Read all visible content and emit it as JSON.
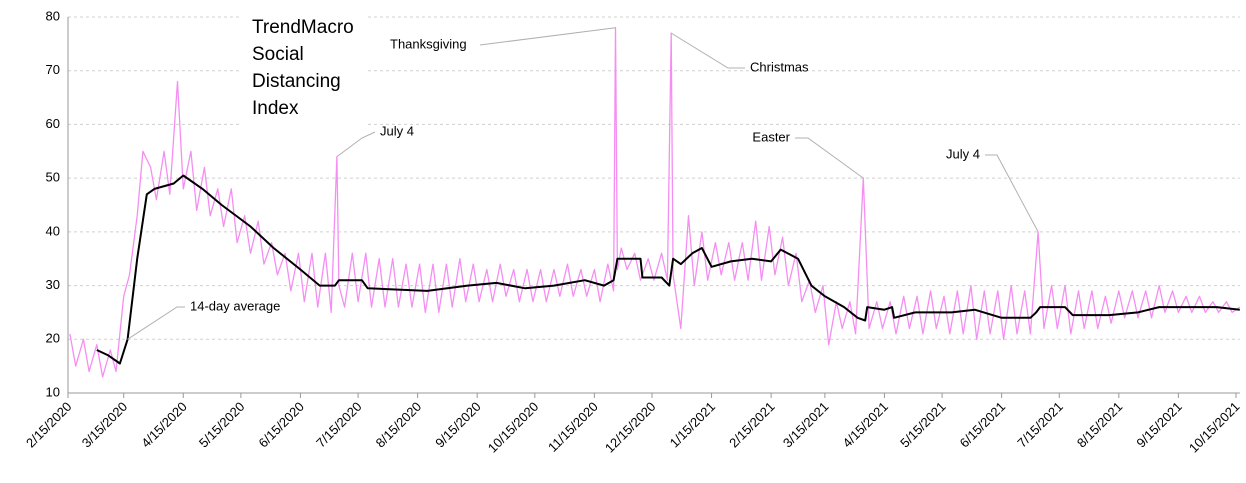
{
  "chart_data": {
    "type": "line",
    "title": [
      "TrendMacro",
      "Social",
      "Distancing",
      "Index"
    ],
    "xlim": [
      "2/15/2020",
      "10/17/2021"
    ],
    "xticks": [
      "2/15/2020",
      "3/15/2020",
      "4/15/2020",
      "5/15/2020",
      "6/15/2020",
      "7/15/2020",
      "8/15/2020",
      "9/15/2020",
      "10/15/2020",
      "11/15/2020",
      "12/15/2020",
      "1/15/2021",
      "2/15/2021",
      "3/15/2021",
      "4/15/2021",
      "5/15/2021",
      "6/15/2021",
      "7/15/2021",
      "8/15/2021",
      "9/15/2021",
      "10/15/2021"
    ],
    "ylim": [
      10,
      80
    ],
    "yticks": [
      10,
      20,
      30,
      40,
      50,
      60,
      70,
      80
    ],
    "grid": true,
    "series": [
      {
        "color": "#f58ef2",
        "x": [
          "2/16/2020",
          "2/19/2020",
          "2/23/2020",
          "2/26/2020",
          "3/1/2020",
          "3/4/2020",
          "3/8/2020",
          "3/11/2020",
          "3/15/2020",
          "3/18/2020",
          "3/22/2020",
          "3/25/2020",
          "3/29/2020",
          "4/1/2020",
          "4/5/2020",
          "4/8/2020",
          "4/12/2020",
          "4/15/2020",
          "4/19/2020",
          "4/22/2020",
          "4/26/2020",
          "4/29/2020",
          "5/3/2020",
          "5/6/2020",
          "5/10/2020",
          "5/13/2020",
          "5/17/2020",
          "5/20/2020",
          "5/24/2020",
          "5/27/2020",
          "5/31/2020",
          "6/3/2020",
          "6/7/2020",
          "6/10/2020",
          "6/14/2020",
          "6/17/2020",
          "6/21/2020",
          "6/24/2020",
          "6/28/2020",
          "7/1/2020",
          "7/4/2020",
          "7/5/2020",
          "7/8/2020",
          "7/12/2020",
          "7/15/2020",
          "7/19/2020",
          "7/22/2020",
          "7/26/2020",
          "7/29/2020",
          "8/2/2020",
          "8/5/2020",
          "8/9/2020",
          "8/12/2020",
          "8/16/2020",
          "8/19/2020",
          "8/23/2020",
          "8/26/2020",
          "8/30/2020",
          "9/2/2020",
          "9/6/2020",
          "9/9/2020",
          "9/13/2020",
          "9/16/2020",
          "9/20/2020",
          "9/23/2020",
          "9/27/2020",
          "9/30/2020",
          "10/4/2020",
          "10/7/2020",
          "10/11/2020",
          "10/14/2020",
          "10/18/2020",
          "10/21/2020",
          "10/25/2020",
          "10/28/2020",
          "11/1/2020",
          "11/4/2020",
          "11/8/2020",
          "11/11/2020",
          "11/15/2020",
          "11/18/2020",
          "11/22/2020",
          "11/25/2020",
          "11/26/2020",
          "11/27/2020",
          "11/29/2020",
          "12/2/2020",
          "12/6/2020",
          "12/9/2020",
          "12/13/2020",
          "12/16/2020",
          "12/20/2020",
          "12/23/2020",
          "12/25/2020",
          "12/26/2020",
          "12/30/2020",
          "1/3/2021",
          "1/6/2021",
          "1/10/2021",
          "1/13/2021",
          "1/17/2021",
          "1/20/2021",
          "1/24/2021",
          "1/27/2021",
          "1/31/2021",
          "2/3/2021",
          "2/7/2021",
          "2/10/2021",
          "2/14/2021",
          "2/17/2021",
          "2/21/2021",
          "2/24/2021",
          "2/28/2021",
          "3/3/2021",
          "3/7/2021",
          "3/10/2021",
          "3/14/2021",
          "3/17/2021",
          "3/21/2021",
          "3/24/2021",
          "3/28/2021",
          "3/31/2021",
          "4/4/2021",
          "4/7/2021",
          "4/11/2021",
          "4/14/2021",
          "4/18/2021",
          "4/21/2021",
          "4/25/2021",
          "4/28/2021",
          "5/2/2021",
          "5/5/2021",
          "5/9/2021",
          "5/12/2021",
          "5/16/2021",
          "5/19/2021",
          "5/23/2021",
          "5/26/2021",
          "5/30/2021",
          "6/2/2021",
          "6/6/2021",
          "6/9/2021",
          "6/13/2021",
          "6/16/2021",
          "6/20/2021",
          "6/23/2021",
          "6/27/2021",
          "6/30/2021",
          "7/4/2021",
          "7/7/2021",
          "7/11/2021",
          "7/14/2021",
          "7/18/2021",
          "7/21/2021",
          "7/25/2021",
          "7/28/2021",
          "8/1/2021",
          "8/4/2021",
          "8/8/2021",
          "8/11/2021",
          "8/15/2021",
          "8/18/2021",
          "8/22/2021",
          "8/25/2021",
          "8/29/2021",
          "9/1/2021",
          "9/5/2021",
          "9/8/2021",
          "9/12/2021",
          "9/15/2021",
          "9/19/2021",
          "9/22/2021",
          "9/26/2021",
          "9/29/2021",
          "10/3/2021",
          "10/6/2021",
          "10/10/2021",
          "10/13/2021",
          "10/17/2021"
        ],
        "values": [
          21,
          15,
          20,
          14,
          19,
          13,
          18,
          14,
          28,
          32,
          43,
          55,
          52,
          46,
          55,
          47,
          68,
          48,
          55,
          44,
          52,
          43,
          48,
          41,
          48,
          38,
          43,
          36,
          42,
          34,
          38,
          32,
          36,
          29,
          36,
          27,
          36,
          26,
          36,
          25,
          54,
          30,
          26,
          36,
          27,
          36,
          26,
          35,
          26,
          35,
          26,
          34,
          26,
          34,
          25,
          34,
          25,
          34,
          26,
          35,
          27,
          34,
          27,
          33,
          27,
          34,
          28,
          33,
          27,
          33,
          27,
          33,
          27,
          33,
          28,
          34,
          28,
          33,
          28,
          33,
          27,
          34,
          29,
          78,
          33,
          37,
          33,
          36,
          31,
          35,
          31,
          36,
          31,
          77,
          32,
          22,
          43,
          30,
          40,
          31,
          38,
          32,
          38,
          31,
          38,
          31,
          42,
          31,
          41,
          32,
          39,
          30,
          36,
          27,
          31,
          25,
          30,
          19,
          27,
          22,
          27,
          21,
          50,
          22,
          27,
          22,
          27,
          21,
          28,
          22,
          28,
          21,
          29,
          22,
          28,
          21,
          29,
          21,
          30,
          20,
          29,
          21,
          29,
          20,
          30,
          21,
          29,
          21,
          40,
          22,
          30,
          22,
          30,
          21,
          29,
          22,
          29,
          22,
          28,
          23,
          29,
          24,
          29,
          24,
          29,
          24,
          30,
          25,
          29,
          25,
          28,
          25,
          28,
          25,
          27,
          25,
          27,
          25,
          26
        ]
      },
      {
        "name": "14-day average",
        "color": "#000000",
        "x": [
          "3/1/2020",
          "3/7/2020",
          "3/13/2020",
          "3/17/2020",
          "3/22/2020",
          "3/27/2020",
          "3/31/2020",
          "4/10/2020",
          "4/15/2020",
          "4/25/2020",
          "5/5/2020",
          "5/20/2020",
          "6/1/2020",
          "6/15/2020",
          "6/25/2020",
          "7/3/2020",
          "7/5/2020",
          "7/17/2020",
          "7/20/2020",
          "8/20/2020",
          "9/10/2020",
          "9/25/2020",
          "10/10/2020",
          "10/25/2020",
          "11/10/2020",
          "11/20/2020",
          "11/25/2020",
          "11/27/2020",
          "12/9/2020",
          "12/10/2020",
          "12/20/2020",
          "12/24/2020",
          "12/26/2020",
          "12/30/2020",
          "1/5/2021",
          "1/10/2021",
          "1/15/2021",
          "1/25/2021",
          "2/5/2021",
          "2/15/2021",
          "2/20/2021",
          "3/1/2021",
          "3/8/2021",
          "3/15/2021",
          "3/25/2021",
          "4/1/2021",
          "4/5/2021",
          "4/6/2021",
          "4/15/2021",
          "4/19/2021",
          "4/20/2021",
          "5/1/2021",
          "5/20/2021",
          "6/1/2021",
          "6/15/2021",
          "6/30/2021",
          "7/3/2021",
          "7/5/2021",
          "7/18/2021",
          "7/22/2021",
          "8/10/2021",
          "8/25/2021",
          "9/5/2021",
          "9/25/2021",
          "10/5/2021",
          "10/17/2021"
        ],
        "values": [
          18,
          17,
          15.5,
          20,
          35,
          47,
          48,
          49,
          50.5,
          48,
          45,
          41,
          37,
          33,
          30,
          30,
          31,
          31,
          29.5,
          29,
          30,
          30.5,
          29.5,
          30,
          31,
          30,
          31,
          35,
          35,
          31.5,
          31.5,
          30,
          35,
          34,
          36,
          37,
          33.5,
          34.5,
          35,
          34.5,
          36.7,
          35,
          30,
          28,
          26,
          24,
          23.5,
          26,
          25.5,
          26,
          24,
          25,
          25,
          25.5,
          24,
          24,
          25,
          26,
          26,
          24.5,
          24.5,
          25,
          26,
          26,
          26,
          25.5
        ]
      }
    ],
    "annotations": [
      {
        "text": "Thanksgiving",
        "x": "11/26/2020",
        "y": 78
      },
      {
        "text": "Christmas",
        "x": "12/25/2020",
        "y": 77
      },
      {
        "text": "July 4",
        "x": "7/4/2020",
        "y": 54
      },
      {
        "text": "Easter",
        "x": "4/4/2021",
        "y": 50
      },
      {
        "text": "July 4",
        "x": "7/4/2021",
        "y": 40
      }
    ]
  }
}
